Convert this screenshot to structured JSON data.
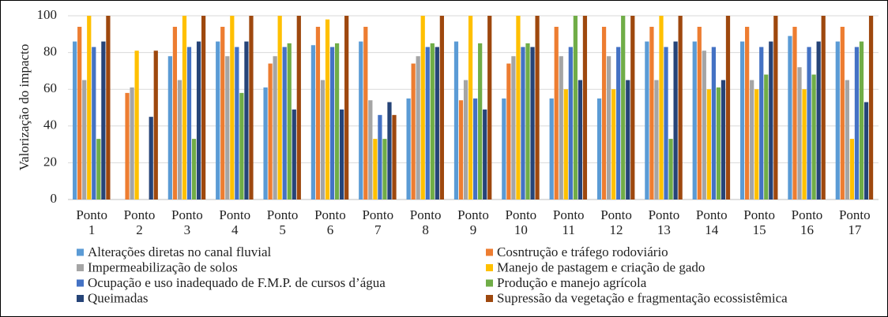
{
  "chart_data": {
    "type": "bar",
    "y_label": "Valorização do impacto",
    "categories": [
      "Ponto 1",
      "Ponto 2",
      "Ponto 3",
      "Ponto 4",
      "Ponto 5",
      "Ponto 6",
      "Ponto 7",
      "Ponto 8",
      "Ponto 9",
      "Ponto 10",
      "Ponto 11",
      "Ponto 12",
      "Ponto 13",
      "Ponto 14",
      "Ponto 15",
      "Ponto 16",
      "Ponto 17"
    ],
    "series": [
      {
        "name": "Alterações diretas no canal fluvial",
        "color": "#5b9bd5",
        "values": [
          86,
          0,
          78,
          86,
          61,
          84,
          86,
          55,
          86,
          55,
          55,
          55,
          86,
          86,
          86,
          89,
          86
        ]
      },
      {
        "name": "Cosntrução e tráfego rodoviário",
        "color": "#ed7d31",
        "values": [
          94,
          58,
          94,
          94,
          74,
          94,
          94,
          74,
          54,
          74,
          94,
          94,
          94,
          94,
          94,
          94,
          94
        ]
      },
      {
        "name": "Impermeabilização de solos",
        "color": "#a5a5a5",
        "values": [
          65,
          61,
          65,
          78,
          78,
          65,
          54,
          78,
          65,
          78,
          78,
          78,
          65,
          81,
          65,
          72,
          65
        ]
      },
      {
        "name": "Manejo de pastagem e criação de gado",
        "color": "#ffc000",
        "values": [
          100,
          81,
          100,
          100,
          100,
          98,
          33,
          100,
          100,
          100,
          60,
          60,
          100,
          60,
          60,
          60,
          33
        ]
      },
      {
        "name": "Ocupação e uso inadequado de F.M.P. de cursos d’água",
        "color": "#4472c4",
        "values": [
          83,
          0,
          83,
          83,
          83,
          83,
          46,
          83,
          55,
          83,
          83,
          83,
          83,
          83,
          83,
          83,
          83
        ]
      },
      {
        "name": "Produção e manejo agrícola",
        "color": "#70ad47",
        "values": [
          33,
          0,
          33,
          58,
          85,
          85,
          33,
          85,
          85,
          85,
          100,
          100,
          33,
          61,
          68,
          68,
          86
        ]
      },
      {
        "name": "Queimadas",
        "color": "#264478",
        "values": [
          86,
          45,
          86,
          86,
          49,
          49,
          53,
          83,
          49,
          83,
          65,
          65,
          86,
          65,
          86,
          86,
          53
        ]
      },
      {
        "name": "Supressão da vegetação e fragmentação ecossistêmica",
        "color": "#9e480e",
        "values": [
          100,
          81,
          100,
          100,
          100,
          100,
          46,
          100,
          100,
          100,
          100,
          100,
          100,
          100,
          100,
          100,
          100
        ]
      }
    ],
    "ylim": [
      0,
      100
    ],
    "yticks": [
      0,
      20,
      40,
      60,
      80,
      100
    ],
    "grid": true
  }
}
